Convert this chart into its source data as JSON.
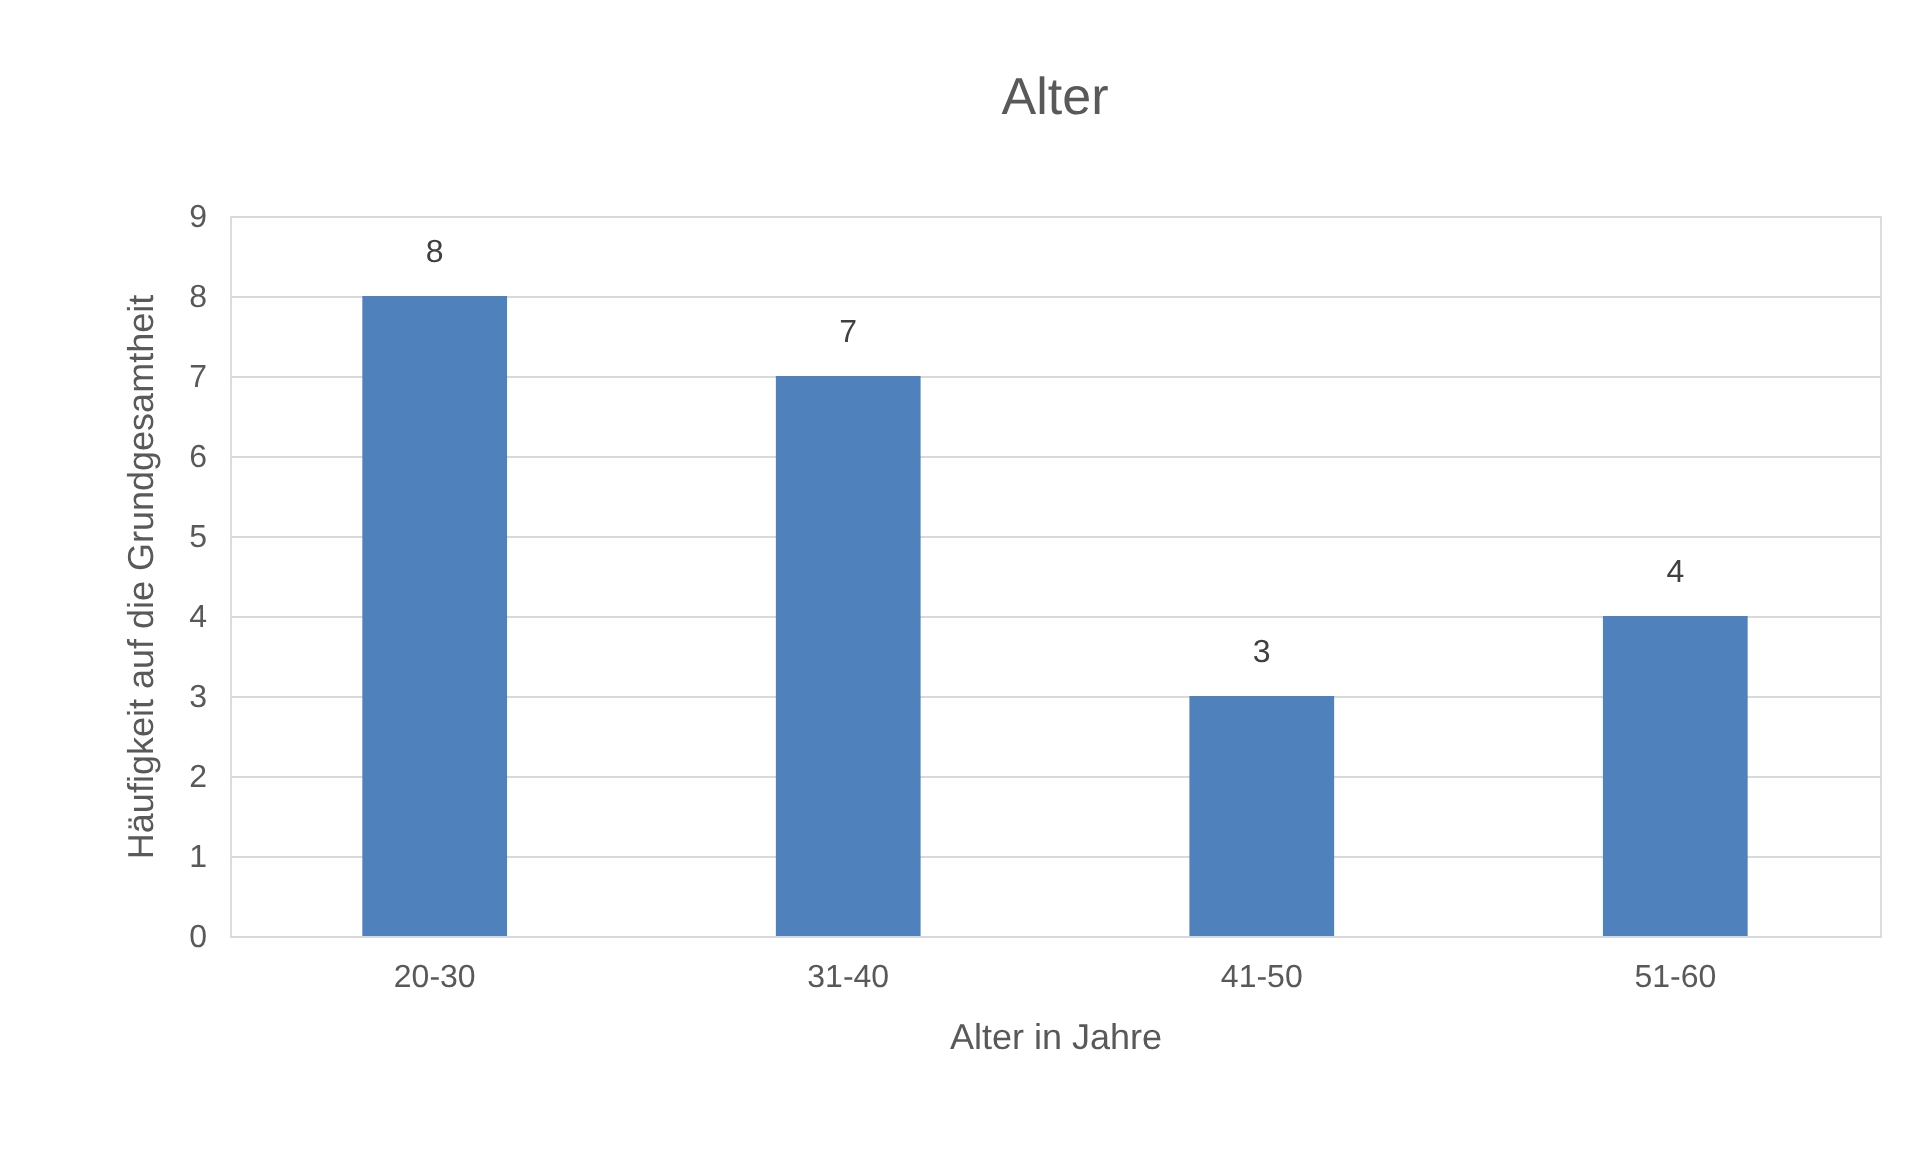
{
  "chart_data": {
    "type": "bar",
    "title": "Alter",
    "xlabel": "Alter in Jahre",
    "ylabel": "Häufigkeit auf die Grundgesamtheit",
    "categories": [
      "20-30",
      "31-40",
      "41-50",
      "51-60"
    ],
    "values": [
      8,
      7,
      3,
      4
    ],
    "color": "#4f81bd",
    "ylim": [
      0,
      9
    ],
    "yticks": [
      0,
      1,
      2,
      3,
      4,
      5,
      6,
      7,
      8,
      9
    ],
    "grid": "y",
    "data_labels": true
  }
}
